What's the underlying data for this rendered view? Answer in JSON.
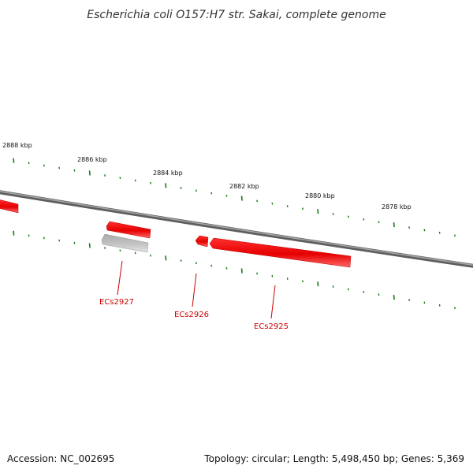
{
  "title": "Escherichia coli O157:H7 str. Sakai, complete genome",
  "footer": {
    "accession": "Accession: NC_002695",
    "summary": "Topology: circular; Length: 5,498,450 bp; Genes: 5,369"
  },
  "ruler": {
    "labels": [
      "2888 kbp",
      "2886 kbp",
      "2884 kbp",
      "2882 kbp",
      "2880 kbp",
      "2878 kbp"
    ],
    "tick_color": "#1a7a1a"
  },
  "genes": [
    {
      "id": "fragment-left",
      "label": "",
      "strand": "-",
      "color": "#ee0000"
    },
    {
      "id": "ECs2927",
      "label": "ECs2927",
      "strand": "-",
      "color": "#ee0000"
    },
    {
      "id": "ECs2927-grey",
      "label": "",
      "strand": "-",
      "color": "#b8b8b8"
    },
    {
      "id": "ECs2926",
      "label": "ECs2926",
      "strand": "-",
      "color": "#ee0000"
    },
    {
      "id": "ECs2925",
      "label": "ECs2925",
      "strand": "-",
      "color": "#ee0000"
    }
  ],
  "colors": {
    "backbone": "#7a7a7a",
    "gene": "#ee0000",
    "gene_label": "#cc0000",
    "ruler_tick": "#1a7a1a"
  }
}
